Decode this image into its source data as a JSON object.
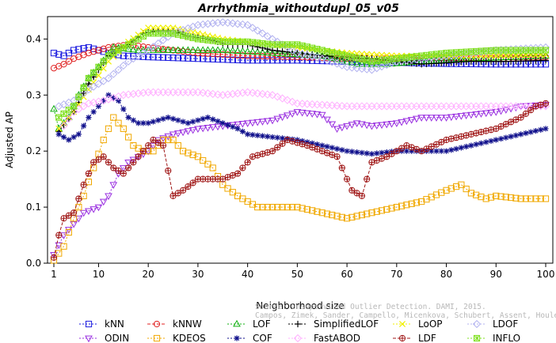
{
  "chart_data": {
    "type": "line",
    "title": "Arrhythmia_withoutdupl_05_v05",
    "xlabel": "Neighborhood size",
    "ylabel": "Adjusted AP",
    "xlim": [
      1,
      100
    ],
    "ylim": [
      0,
      0.44
    ],
    "xticks": [
      1,
      10,
      20,
      30,
      40,
      50,
      60,
      70,
      80,
      90,
      100
    ],
    "yticks": [
      0.0,
      0.1,
      0.2,
      0.3,
      0.4
    ],
    "grid": false,
    "legend_position": "bottom",
    "watermark": [
      "Source: Unsupervised Outlier Detection. DAMI, 2015.",
      "Campos, Zimek, Sander, Campello, Micenkova, Schubert, Assent, Houle"
    ],
    "series": [
      {
        "name": "kNN",
        "color": "#1a1adf",
        "marker": "square",
        "dash": "2,2",
        "points": [
          [
            1,
            0.375
          ],
          [
            3,
            0.37
          ],
          [
            5,
            0.38
          ],
          [
            8,
            0.385
          ],
          [
            10,
            0.38
          ],
          [
            12,
            0.375
          ],
          [
            15,
            0.37
          ],
          [
            20,
            0.368
          ],
          [
            30,
            0.365
          ],
          [
            40,
            0.362
          ],
          [
            50,
            0.362
          ],
          [
            60,
            0.36
          ],
          [
            70,
            0.358
          ],
          [
            80,
            0.356
          ],
          [
            90,
            0.355
          ],
          [
            100,
            0.355
          ]
        ]
      },
      {
        "name": "kNNW",
        "color": "#e02020",
        "marker": "circle",
        "dash": "4,2",
        "points": [
          [
            1,
            0.348
          ],
          [
            3,
            0.355
          ],
          [
            5,
            0.365
          ],
          [
            8,
            0.375
          ],
          [
            12,
            0.385
          ],
          [
            16,
            0.39
          ],
          [
            20,
            0.385
          ],
          [
            30,
            0.375
          ],
          [
            40,
            0.37
          ],
          [
            50,
            0.368
          ],
          [
            60,
            0.365
          ],
          [
            70,
            0.366
          ],
          [
            80,
            0.366
          ],
          [
            90,
            0.367
          ],
          [
            100,
            0.368
          ]
        ]
      },
      {
        "name": "LOF",
        "color": "#10b010",
        "marker": "triangle",
        "dash": "2,2",
        "points": [
          [
            1,
            0.275
          ],
          [
            2,
            0.24
          ],
          [
            4,
            0.26
          ],
          [
            6,
            0.3
          ],
          [
            8,
            0.33
          ],
          [
            10,
            0.35
          ],
          [
            13,
            0.385
          ],
          [
            18,
            0.38
          ],
          [
            25,
            0.38
          ],
          [
            35,
            0.38
          ],
          [
            45,
            0.375
          ],
          [
            55,
            0.37
          ],
          [
            62,
            0.355
          ],
          [
            68,
            0.355
          ],
          [
            75,
            0.36
          ],
          [
            85,
            0.365
          ],
          [
            100,
            0.37
          ]
        ]
      },
      {
        "name": "SimplifiedLOF",
        "color": "#000000",
        "marker": "plus",
        "dash": "2,2",
        "points": [
          [
            2,
            0.235
          ],
          [
            5,
            0.27
          ],
          [
            8,
            0.32
          ],
          [
            12,
            0.37
          ],
          [
            16,
            0.39
          ],
          [
            19,
            0.41
          ],
          [
            22,
            0.415
          ],
          [
            25,
            0.415
          ],
          [
            28,
            0.405
          ],
          [
            32,
            0.4
          ],
          [
            36,
            0.39
          ],
          [
            40,
            0.39
          ],
          [
            45,
            0.38
          ],
          [
            55,
            0.37
          ],
          [
            65,
            0.365
          ],
          [
            75,
            0.355
          ],
          [
            85,
            0.36
          ],
          [
            92,
            0.36
          ],
          [
            100,
            0.362
          ]
        ]
      },
      {
        "name": "LoOP",
        "color": "#f0f000",
        "marker": "cross",
        "dash": "2,2",
        "points": [
          [
            2,
            0.24
          ],
          [
            5,
            0.27
          ],
          [
            8,
            0.31
          ],
          [
            12,
            0.36
          ],
          [
            16,
            0.395
          ],
          [
            20,
            0.42
          ],
          [
            25,
            0.42
          ],
          [
            30,
            0.41
          ],
          [
            35,
            0.4
          ],
          [
            40,
            0.395
          ],
          [
            50,
            0.385
          ],
          [
            60,
            0.375
          ],
          [
            70,
            0.37
          ],
          [
            80,
            0.37
          ],
          [
            90,
            0.37
          ],
          [
            100,
            0.372
          ]
        ]
      },
      {
        "name": "LDOF",
        "color": "#b3b3f0",
        "marker": "diamond",
        "dash": "2,2",
        "points": [
          [
            2,
            0.28
          ],
          [
            5,
            0.29
          ],
          [
            8,
            0.31
          ],
          [
            12,
            0.33
          ],
          [
            16,
            0.36
          ],
          [
            20,
            0.38
          ],
          [
            25,
            0.41
          ],
          [
            30,
            0.425
          ],
          [
            35,
            0.43
          ],
          [
            40,
            0.425
          ],
          [
            45,
            0.4
          ],
          [
            50,
            0.375
          ],
          [
            55,
            0.365
          ],
          [
            60,
            0.35
          ],
          [
            65,
            0.345
          ],
          [
            70,
            0.36
          ],
          [
            75,
            0.365
          ],
          [
            80,
            0.37
          ],
          [
            90,
            0.38
          ],
          [
            100,
            0.385
          ]
        ]
      },
      {
        "name": "ODIN",
        "color": "#9a30e0",
        "marker": "triangle-down",
        "dash": "2,2",
        "points": [
          [
            1,
            0.015
          ],
          [
            3,
            0.05
          ],
          [
            5,
            0.07
          ],
          [
            7,
            0.09
          ],
          [
            10,
            0.1
          ],
          [
            12,
            0.12
          ],
          [
            14,
            0.16
          ],
          [
            16,
            0.18
          ],
          [
            18,
            0.19
          ],
          [
            20,
            0.2
          ],
          [
            22,
            0.22
          ],
          [
            25,
            0.23
          ],
          [
            30,
            0.24
          ],
          [
            35,
            0.245
          ],
          [
            40,
            0.25
          ],
          [
            45,
            0.255
          ],
          [
            50,
            0.27
          ],
          [
            55,
            0.265
          ],
          [
            58,
            0.24
          ],
          [
            62,
            0.25
          ],
          [
            65,
            0.245
          ],
          [
            70,
            0.25
          ],
          [
            75,
            0.26
          ],
          [
            80,
            0.26
          ],
          [
            85,
            0.265
          ],
          [
            90,
            0.27
          ],
          [
            95,
            0.28
          ],
          [
            100,
            0.283
          ]
        ]
      },
      {
        "name": "KDEOS",
        "color": "#f0a800",
        "marker": "square",
        "dash": "2,2",
        "points": [
          [
            1,
            0.005
          ],
          [
            3,
            0.03
          ],
          [
            5,
            0.08
          ],
          [
            7,
            0.12
          ],
          [
            9,
            0.17
          ],
          [
            11,
            0.22
          ],
          [
            13,
            0.26
          ],
          [
            15,
            0.24
          ],
          [
            17,
            0.21
          ],
          [
            19,
            0.2
          ],
          [
            21,
            0.2
          ],
          [
            23,
            0.22
          ],
          [
            25,
            0.22
          ],
          [
            27,
            0.2
          ],
          [
            30,
            0.19
          ],
          [
            33,
            0.17
          ],
          [
            35,
            0.14
          ],
          [
            38,
            0.12
          ],
          [
            40,
            0.11
          ],
          [
            42,
            0.1
          ],
          [
            45,
            0.1
          ],
          [
            50,
            0.1
          ],
          [
            55,
            0.09
          ],
          [
            60,
            0.08
          ],
          [
            65,
            0.09
          ],
          [
            70,
            0.1
          ],
          [
            75,
            0.11
          ],
          [
            80,
            0.13
          ],
          [
            83,
            0.14
          ],
          [
            85,
            0.125
          ],
          [
            88,
            0.115
          ],
          [
            90,
            0.12
          ],
          [
            95,
            0.115
          ],
          [
            100,
            0.115
          ]
        ]
      },
      {
        "name": "COF",
        "color": "#10108c",
        "marker": "star",
        "dash": "2,2",
        "points": [
          [
            2,
            0.23
          ],
          [
            4,
            0.22
          ],
          [
            6,
            0.23
          ],
          [
            8,
            0.26
          ],
          [
            10,
            0.28
          ],
          [
            12,
            0.3
          ],
          [
            14,
            0.29
          ],
          [
            16,
            0.26
          ],
          [
            18,
            0.25
          ],
          [
            20,
            0.25
          ],
          [
            24,
            0.26
          ],
          [
            28,
            0.25
          ],
          [
            32,
            0.26
          ],
          [
            35,
            0.25
          ],
          [
            38,
            0.24
          ],
          [
            40,
            0.23
          ],
          [
            45,
            0.225
          ],
          [
            50,
            0.22
          ],
          [
            55,
            0.21
          ],
          [
            60,
            0.2
          ],
          [
            65,
            0.195
          ],
          [
            70,
            0.2
          ],
          [
            75,
            0.2
          ],
          [
            80,
            0.2
          ],
          [
            85,
            0.21
          ],
          [
            90,
            0.22
          ],
          [
            95,
            0.23
          ],
          [
            100,
            0.24
          ]
        ]
      },
      {
        "name": "FastABOD",
        "color": "#ffb0ff",
        "marker": "diamond",
        "dash": "2,2",
        "points": [
          [
            3,
            0.245
          ],
          [
            5,
            0.27
          ],
          [
            8,
            0.285
          ],
          [
            11,
            0.29
          ],
          [
            15,
            0.3
          ],
          [
            20,
            0.305
          ],
          [
            25,
            0.305
          ],
          [
            30,
            0.305
          ],
          [
            35,
            0.3
          ],
          [
            40,
            0.305
          ],
          [
            45,
            0.3
          ],
          [
            50,
            0.285
          ],
          [
            60,
            0.28
          ],
          [
            70,
            0.28
          ],
          [
            80,
            0.28
          ],
          [
            90,
            0.28
          ],
          [
            100,
            0.28
          ]
        ]
      },
      {
        "name": "LDF",
        "color": "#a01818",
        "marker": "circle-plus",
        "dash": "4,2",
        "points": [
          [
            1,
            0.01
          ],
          [
            2,
            0.05
          ],
          [
            3,
            0.08
          ],
          [
            5,
            0.09
          ],
          [
            7,
            0.14
          ],
          [
            9,
            0.18
          ],
          [
            11,
            0.19
          ],
          [
            13,
            0.17
          ],
          [
            15,
            0.16
          ],
          [
            17,
            0.18
          ],
          [
            19,
            0.2
          ],
          [
            21,
            0.22
          ],
          [
            23,
            0.21
          ],
          [
            25,
            0.12
          ],
          [
            27,
            0.13
          ],
          [
            30,
            0.15
          ],
          [
            35,
            0.15
          ],
          [
            38,
            0.16
          ],
          [
            41,
            0.19
          ],
          [
            45,
            0.2
          ],
          [
            48,
            0.22
          ],
          [
            52,
            0.21
          ],
          [
            55,
            0.2
          ],
          [
            58,
            0.19
          ],
          [
            61,
            0.13
          ],
          [
            63,
            0.12
          ],
          [
            65,
            0.18
          ],
          [
            68,
            0.19
          ],
          [
            72,
            0.21
          ],
          [
            75,
            0.2
          ],
          [
            80,
            0.22
          ],
          [
            85,
            0.23
          ],
          [
            90,
            0.24
          ],
          [
            95,
            0.26
          ],
          [
            98,
            0.28
          ],
          [
            100,
            0.285
          ]
        ]
      },
      {
        "name": "INFLO",
        "color": "#80e020",
        "marker": "star-box",
        "dash": "2,2",
        "points": [
          [
            2,
            0.26
          ],
          [
            5,
            0.28
          ],
          [
            8,
            0.33
          ],
          [
            12,
            0.37
          ],
          [
            16,
            0.39
          ],
          [
            20,
            0.41
          ],
          [
            25,
            0.41
          ],
          [
            30,
            0.4
          ],
          [
            35,
            0.395
          ],
          [
            40,
            0.395
          ],
          [
            45,
            0.39
          ],
          [
            50,
            0.39
          ],
          [
            55,
            0.38
          ],
          [
            60,
            0.37
          ],
          [
            65,
            0.36
          ],
          [
            70,
            0.365
          ],
          [
            75,
            0.37
          ],
          [
            80,
            0.375
          ],
          [
            90,
            0.38
          ],
          [
            100,
            0.38
          ]
        ]
      }
    ]
  }
}
